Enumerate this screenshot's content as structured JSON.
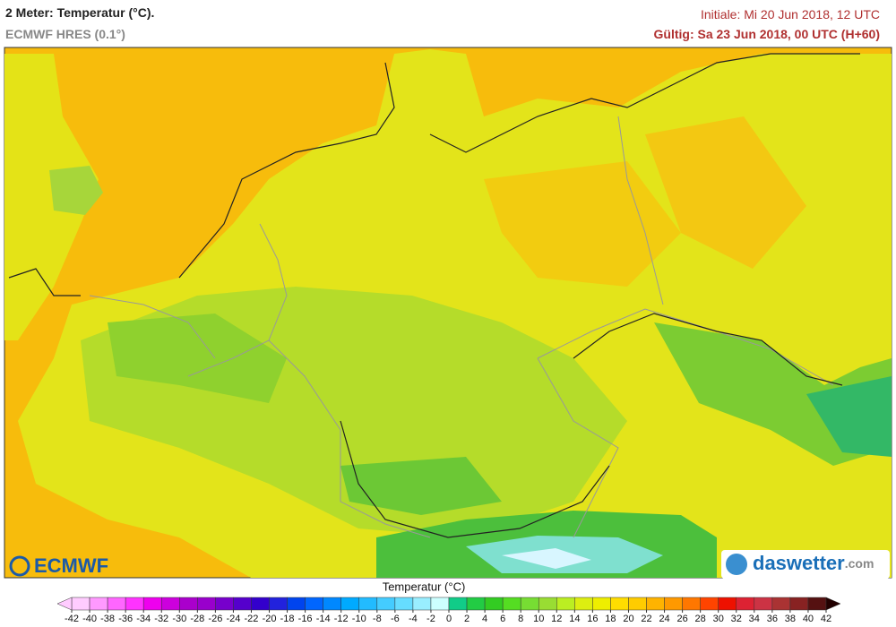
{
  "header": {
    "title": "2 Meter: Temperatur (°C).",
    "subtitle": "ECMWF HRES (0.1°)",
    "init": "Initiale: Mi 20 Jun 2018, 12 UTC",
    "valid": "Gültig: Sa 23 Jun 2018, 00 UTC (H+60)"
  },
  "logos": {
    "left": "ECMWF",
    "right_name": "daswetter",
    "right_suffix": ".com"
  },
  "colorbar": {
    "title": "Temperatur (°C)",
    "ticks": [
      -42,
      -40,
      -38,
      -36,
      -34,
      -32,
      -30,
      -28,
      -26,
      -24,
      -22,
      -20,
      -18,
      -16,
      -14,
      -12,
      -10,
      -8,
      -6,
      -4,
      -2,
      0,
      2,
      4,
      6,
      8,
      10,
      12,
      14,
      16,
      18,
      20,
      22,
      24,
      26,
      28,
      30,
      32,
      34,
      36,
      38,
      40,
      42
    ],
    "colors": [
      "#ffccff",
      "#ff99ff",
      "#ff66ff",
      "#ff33ff",
      "#ee00ee",
      "#cc00dd",
      "#aa00cc",
      "#9900cc",
      "#7700cc",
      "#5500cc",
      "#3300cc",
      "#2222dd",
      "#0044ee",
      "#0066ff",
      "#0088ff",
      "#00aaff",
      "#22bbff",
      "#44ccff",
      "#66ddff",
      "#99eeff",
      "#ccffff",
      "#11cc88",
      "#22cc44",
      "#33cc22",
      "#55dd22",
      "#77dd33",
      "#99dd33",
      "#bbee22",
      "#ddee11",
      "#eeee00",
      "#ffdd00",
      "#ffcc00",
      "#ffb300",
      "#ff9900",
      "#ff7700",
      "#ff4400",
      "#ee1100",
      "#dd2233",
      "#cc3344",
      "#aa3333",
      "#882222",
      "#551111"
    ]
  }
}
